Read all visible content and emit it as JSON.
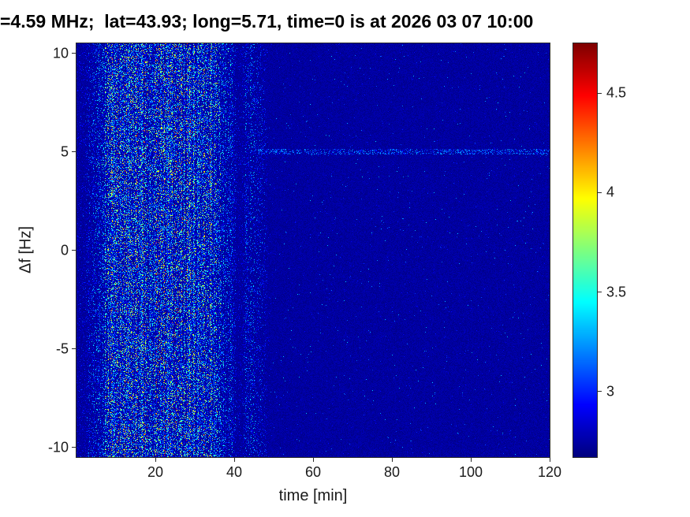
{
  "chart_data": {
    "type": "heatmap",
    "title": "=4.59 MHz;  lat=43.93; long=5.71, time=0 is at 2026 03 07 10:00",
    "xlabel": "time [min]",
    "ylabel": "Δf [Hz]",
    "x_range": [
      0,
      120
    ],
    "y_range": [
      -10.5,
      10.5
    ],
    "x_ticks": [
      20,
      40,
      60,
      80,
      100,
      120
    ],
    "y_ticks": [
      10,
      5,
      0,
      -5,
      -10
    ],
    "colormap": "jet",
    "colorbar": {
      "min": 2.67,
      "max": 4.75,
      "ticks": [
        4.5,
        4,
        3.5,
        3
      ]
    },
    "background_value": 2.7,
    "features": {
      "description": "Broadband speckled noise burst from ~t=2 to ~t=49 min spanning all Doppler shifts, strongest t=12-30 min (values up to ~4.4); narrow quiet vertical gap near t=41 min; renewed speckle t=43-48 min; sparse speckle line at Δf=+5 Hz for t>46 min; uniform dark-blue background (~2.7) elsewhere",
      "intensity_envelope": [
        [
          0,
          0.05
        ],
        [
          2,
          0.2
        ],
        [
          5,
          0.5
        ],
        [
          9,
          0.9
        ],
        [
          12,
          1
        ],
        [
          30,
          1
        ],
        [
          33,
          0.9
        ],
        [
          37,
          0.65
        ],
        [
          39.5,
          0.45
        ],
        [
          40.8,
          0.15
        ],
        [
          42,
          0.12
        ],
        [
          43,
          0.45
        ],
        [
          44.5,
          0.45
        ],
        [
          46,
          0.32
        ],
        [
          47.5,
          0.22
        ],
        [
          48.5,
          0.08
        ],
        [
          49.5,
          0
        ]
      ],
      "horizontal_line": {
        "f": 5,
        "t_start": 46,
        "t_end": 120,
        "peak_value": 3.3
      }
    },
    "noise_seed": 20260307
  }
}
